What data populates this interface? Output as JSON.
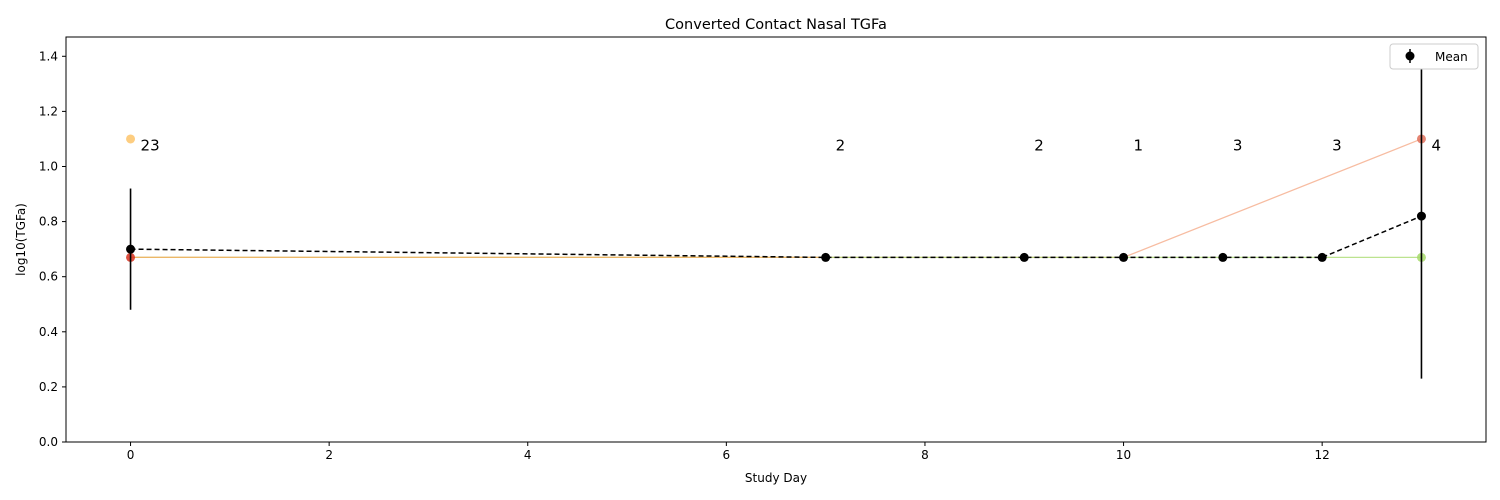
{
  "chart_data": {
    "type": "line",
    "title": "Converted Contact Nasal TGFa",
    "xlabel": "Study Day",
    "ylabel": "log10(TGFa)",
    "xlim": [
      -0.65,
      13.65
    ],
    "ylim": [
      0,
      1.47
    ],
    "x_ticks": [
      0,
      2,
      4,
      6,
      8,
      10,
      12
    ],
    "y_ticks": [
      0.0,
      0.2,
      0.4,
      0.6,
      0.8,
      1.0,
      1.2,
      1.4
    ],
    "x_tick_labels": [
      "0",
      "2",
      "4",
      "6",
      "8",
      "10",
      "12"
    ],
    "y_tick_labels": [
      "0.0",
      "0.2",
      "0.4",
      "0.6",
      "0.8",
      "1.0",
      "1.2",
      "1.4"
    ],
    "grid": false,
    "legend": {
      "placement": "top-right",
      "entries": [
        "Mean"
      ]
    },
    "series": [
      {
        "name": "Mean",
        "color": "#000000",
        "style": "dashed",
        "x": [
          0,
          7,
          9,
          10,
          11,
          12,
          13
        ],
        "y": [
          0.7,
          0.67,
          0.67,
          0.67,
          0.67,
          0.67,
          0.82
        ],
        "error": [
          0.22,
          0,
          0,
          0,
          0,
          0,
          0.59
        ]
      }
    ],
    "subjects": [
      {
        "color": "#f4a582",
        "x": [
          0,
          7,
          9,
          10,
          13
        ],
        "y": [
          0.67,
          0.67,
          0.67,
          0.67,
          1.1
        ]
      },
      {
        "color": "#a6d96a",
        "x": [
          0,
          7,
          9,
          10,
          11,
          12,
          13
        ],
        "y": [
          0.67,
          0.67,
          0.67,
          0.67,
          0.67,
          0.67,
          0.67
        ]
      },
      {
        "color": "#fdae61",
        "x": [
          0,
          7
        ],
        "y": [
          0.67,
          0.67
        ]
      }
    ],
    "extra_points": [
      {
        "x": 0,
        "y": 1.1,
        "color": "#fdc46a"
      },
      {
        "x": 0,
        "y": 0.67,
        "color": "#d7301f"
      },
      {
        "x": 13,
        "y": 1.1,
        "color": "#e0705a"
      },
      {
        "x": 13,
        "y": 0.67,
        "color": "#a6d96a"
      }
    ],
    "counts": [
      {
        "x": 0,
        "label": "23"
      },
      {
        "x": 7,
        "label": "2"
      },
      {
        "x": 9,
        "label": "2"
      },
      {
        "x": 10,
        "label": "1"
      },
      {
        "x": 11,
        "label": "3"
      },
      {
        "x": 12,
        "label": "3"
      },
      {
        "x": 13,
        "label": "4"
      }
    ],
    "counts_y": 1.08
  }
}
